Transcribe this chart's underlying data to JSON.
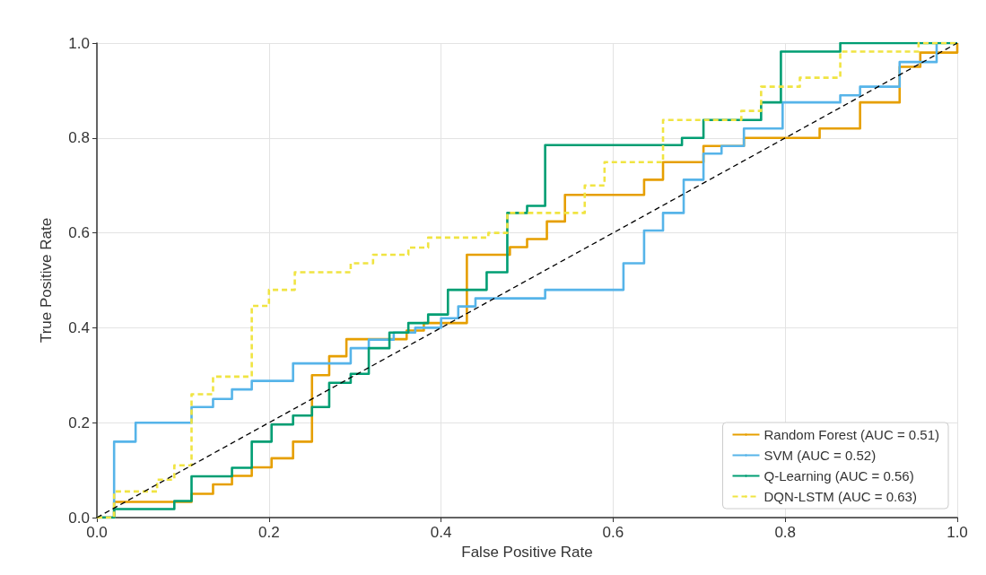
{
  "chart_data": {
    "type": "step",
    "xlabel": "False Positive Rate",
    "ylabel": "True Positive Rate",
    "xlim": [
      0,
      1
    ],
    "ylim": [
      0,
      1
    ],
    "xticks": [
      {
        "value": 0,
        "label": "0.0"
      },
      {
        "value": 0.2,
        "label": "0.2"
      },
      {
        "value": 0.4,
        "label": "0.4"
      },
      {
        "value": 0.6,
        "label": "0.6"
      },
      {
        "value": 0.8,
        "label": "0.8"
      },
      {
        "value": 1,
        "label": "1.0"
      }
    ],
    "yticks": [
      {
        "value": 0,
        "label": "0.0"
      },
      {
        "value": 0.2,
        "label": "0.2"
      },
      {
        "value": 0.4,
        "label": "0.4"
      },
      {
        "value": 0.6,
        "label": "0.6"
      },
      {
        "value": 0.8,
        "label": "0.8"
      },
      {
        "value": 1,
        "label": "1.0"
      }
    ],
    "grid": true,
    "legend": "bottom right",
    "marker": "none",
    "series": [
      {
        "name": "Random Forest (AUC = 0.51)",
        "color": "#e69f00",
        "line_style": "solid",
        "x": [
          0,
          0.02,
          0.11,
          0.135,
          0.157,
          0.18,
          0.203,
          0.228,
          0.25,
          0.27,
          0.29,
          0.36,
          0.38,
          0.43,
          0.48,
          0.5,
          0.523,
          0.544,
          0.636,
          0.658,
          0.705,
          0.752,
          0.84,
          0.887,
          0.933,
          0.957,
          1
        ],
        "values": [
          0,
          0.033,
          0.05,
          0.07,
          0.088,
          0.106,
          0.125,
          0.16,
          0.3,
          0.34,
          0.376,
          0.394,
          0.41,
          0.554,
          0.57,
          0.587,
          0.624,
          0.68,
          0.712,
          0.749,
          0.783,
          0.8,
          0.82,
          0.875,
          0.95,
          0.98,
          1
        ]
      },
      {
        "name": "SVM (AUC = 0.52)",
        "color": "#56b4e9",
        "line_style": "solid",
        "x": [
          0,
          0.02,
          0.045,
          0.11,
          0.135,
          0.157,
          0.18,
          0.228,
          0.295,
          0.316,
          0.345,
          0.37,
          0.4,
          0.42,
          0.44,
          0.521,
          0.612,
          0.636,
          0.658,
          0.682,
          0.705,
          0.726,
          0.752,
          0.797,
          0.864,
          0.887,
          0.933,
          0.976
        ],
        "values": [
          0,
          0.16,
          0.2,
          0.233,
          0.25,
          0.27,
          0.288,
          0.325,
          0.357,
          0.375,
          0.39,
          0.4,
          0.42,
          0.445,
          0.462,
          0.48,
          0.536,
          0.605,
          0.642,
          0.712,
          0.767,
          0.783,
          0.82,
          0.875,
          0.89,
          0.908,
          0.96,
          1
        ]
      },
      {
        "name": "Q-Learning (AUC = 0.56)",
        "color": "#009e73",
        "line_style": "solid",
        "x": [
          0,
          0.02,
          0.09,
          0.11,
          0.157,
          0.18,
          0.203,
          0.228,
          0.25,
          0.27,
          0.295,
          0.316,
          0.34,
          0.362,
          0.385,
          0.408,
          0.453,
          0.477,
          0.5,
          0.521,
          0.68,
          0.705,
          0.772,
          0.795,
          0.864,
          1
        ],
        "values": [
          0,
          0.018,
          0.035,
          0.087,
          0.105,
          0.16,
          0.196,
          0.215,
          0.233,
          0.284,
          0.303,
          0.357,
          0.39,
          0.41,
          0.428,
          0.48,
          0.517,
          0.642,
          0.657,
          0.785,
          0.8,
          0.838,
          0.875,
          0.982,
          1,
          1
        ]
      },
      {
        "name": "DQN-LSTM (AUC = 0.63)",
        "color": "#f0e442",
        "line_style": "dashed",
        "x": [
          0,
          0.02,
          0.07,
          0.09,
          0.11,
          0.135,
          0.18,
          0.2,
          0.23,
          0.295,
          0.321,
          0.362,
          0.385,
          0.455,
          0.477,
          0.567,
          0.59,
          0.658,
          0.749,
          0.772,
          0.817,
          0.864,
          0.955,
          1
        ],
        "values": [
          0,
          0.055,
          0.08,
          0.11,
          0.26,
          0.297,
          0.446,
          0.48,
          0.517,
          0.536,
          0.554,
          0.569,
          0.59,
          0.6,
          0.642,
          0.7,
          0.749,
          0.838,
          0.857,
          0.908,
          0.927,
          0.982,
          1,
          1
        ]
      },
      {
        "type": "line",
        "color": "#000000",
        "line_style": "dashed",
        "x": [
          0,
          1
        ],
        "values": [
          0,
          1
        ]
      }
    ]
  }
}
